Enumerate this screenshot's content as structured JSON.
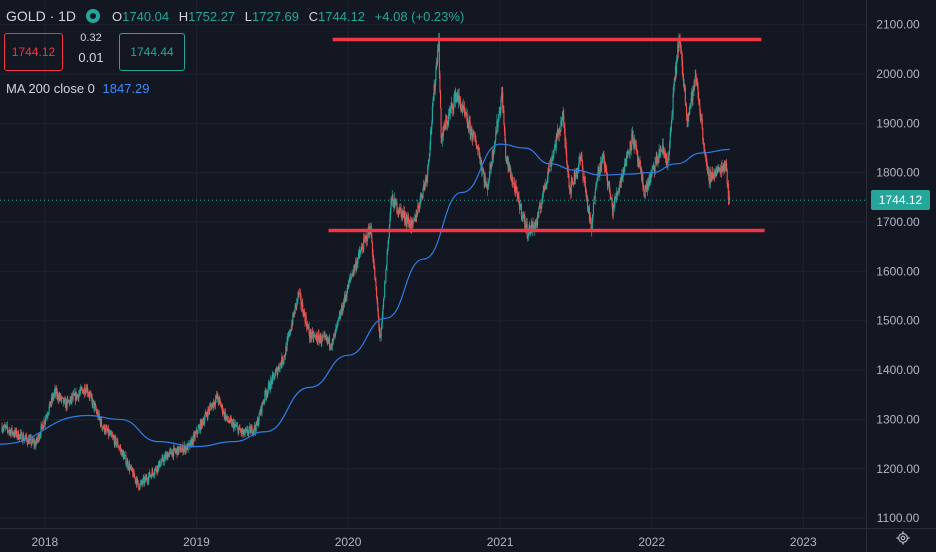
{
  "header": {
    "symbol": "GOLD · 1D",
    "open_label": "O",
    "open": "1740.04",
    "high_label": "H",
    "high": "1752.27",
    "low_label": "L",
    "low": "1727.69",
    "close_label": "C",
    "close": "1744.12",
    "change": "+4.08 (+0.23%)"
  },
  "trade": {
    "sell_price": "1744.12",
    "spread_top": "0.32",
    "spread_bottom": "0.01",
    "buy_price": "1744.44"
  },
  "indicator": {
    "label": "MA 200 close 0",
    "value": "1847.29"
  },
  "last_price_tag": "1744.12",
  "colors": {
    "background": "#131722",
    "up": "#26a69a",
    "down": "#ef5350",
    "ma": "#2f7ce6",
    "support_resistance": "#f23645",
    "grid": "#1e222d",
    "text": "#b2b5be"
  },
  "icons": {
    "status": "green-dot-icon",
    "settings": "gear-icon"
  },
  "chart_data": {
    "type": "candlestick",
    "xlim": [
      "2017-09-15",
      "2023-06-01"
    ],
    "ylim": [
      1080,
      2150
    ],
    "x_ticks": [
      "2018",
      "2019",
      "2020",
      "2021",
      "2022",
      "2023"
    ],
    "y_ticks": [
      "2100.00",
      "2000.00",
      "1900.00",
      "1800.00",
      "1700.00",
      "1600.00",
      "1500.00",
      "1400.00",
      "1300.00",
      "1200.00",
      "1100.00"
    ],
    "price_path": [
      [
        "2017-09-20",
        1285
      ],
      [
        "2017-12-10",
        1250
      ],
      [
        "2018-01-25",
        1355
      ],
      [
        "2018-02-20",
        1330
      ],
      [
        "2018-04-11",
        1365
      ],
      [
        "2018-05-20",
        1285
      ],
      [
        "2018-06-25",
        1250
      ],
      [
        "2018-08-16",
        1165
      ],
      [
        "2018-09-20",
        1195
      ],
      [
        "2018-10-25",
        1230
      ],
      [
        "2018-12-15",
        1245
      ],
      [
        "2019-01-31",
        1320
      ],
      [
        "2019-02-20",
        1345
      ],
      [
        "2019-03-15",
        1300
      ],
      [
        "2019-04-25",
        1270
      ],
      [
        "2019-05-25",
        1285
      ],
      [
        "2019-06-15",
        1350
      ],
      [
        "2019-08-01",
        1430
      ],
      [
        "2019-09-04",
        1555
      ],
      [
        "2019-10-01",
        1470
      ],
      [
        "2019-11-25",
        1455
      ],
      [
        "2020-01-08",
        1590
      ],
      [
        "2020-02-24",
        1690
      ],
      [
        "2020-03-19",
        1455
      ],
      [
        "2020-04-14",
        1745
      ],
      [
        "2020-06-05",
        1690
      ],
      [
        "2020-07-10",
        1800
      ],
      [
        "2020-08-06",
        2075
      ],
      [
        "2020-08-12",
        1870
      ],
      [
        "2020-09-18",
        1960
      ],
      [
        "2020-10-15",
        1900
      ],
      [
        "2020-11-09",
        1850
      ],
      [
        "2020-11-30",
        1765
      ],
      [
        "2021-01-06",
        1960
      ],
      [
        "2021-01-15",
        1830
      ],
      [
        "2021-03-08",
        1680
      ],
      [
        "2021-03-31",
        1700
      ],
      [
        "2021-04-20",
        1780
      ],
      [
        "2021-06-01",
        1915
      ],
      [
        "2021-06-18",
        1765
      ],
      [
        "2021-07-15",
        1830
      ],
      [
        "2021-08-09",
        1680
      ],
      [
        "2021-08-20",
        1790
      ],
      [
        "2021-09-07",
        1830
      ],
      [
        "2021-09-29",
        1725
      ],
      [
        "2021-11-16",
        1875
      ],
      [
        "2021-12-15",
        1760
      ],
      [
        "2022-01-25",
        1850
      ],
      [
        "2022-02-10",
        1820
      ],
      [
        "2022-02-24",
        1975
      ],
      [
        "2022-03-08",
        2075
      ],
      [
        "2022-03-28",
        1910
      ],
      [
        "2022-04-18",
        1995
      ],
      [
        "2022-05-16",
        1790
      ],
      [
        "2022-06-13",
        1805
      ],
      [
        "2022-06-29",
        1820
      ],
      [
        "2022-07-06",
        1740
      ],
      [
        "2022-07-08",
        1744.12
      ]
    ],
    "moving_average": {
      "name": "MA 200 close 0",
      "points": [
        [
          "2017-09-15",
          1250
        ],
        [
          "2018-04-15",
          1308
        ],
        [
          "2018-07-01",
          1300
        ],
        [
          "2018-10-01",
          1255
        ],
        [
          "2019-01-01",
          1245
        ],
        [
          "2019-04-01",
          1255
        ],
        [
          "2019-06-15",
          1275
        ],
        [
          "2019-10-01",
          1365
        ],
        [
          "2020-01-01",
          1430
        ],
        [
          "2020-04-01",
          1505
        ],
        [
          "2020-07-01",
          1625
        ],
        [
          "2020-10-01",
          1760
        ],
        [
          "2021-01-01",
          1858
        ],
        [
          "2021-03-01",
          1850
        ],
        [
          "2021-05-01",
          1818
        ],
        [
          "2021-07-01",
          1805
        ],
        [
          "2021-09-01",
          1795
        ],
        [
          "2021-11-01",
          1797
        ],
        [
          "2022-01-01",
          1800
        ],
        [
          "2022-03-01",
          1818
        ],
        [
          "2022-05-01",
          1840
        ],
        [
          "2022-07-08",
          1847.29
        ]
      ]
    },
    "horizontal_lines": [
      {
        "y": 2070,
        "from": "2019-11-25",
        "to": "2022-09-22"
      },
      {
        "y": 1683,
        "from": "2019-11-15",
        "to": "2022-09-30"
      }
    ],
    "last_price": 1744.12
  }
}
